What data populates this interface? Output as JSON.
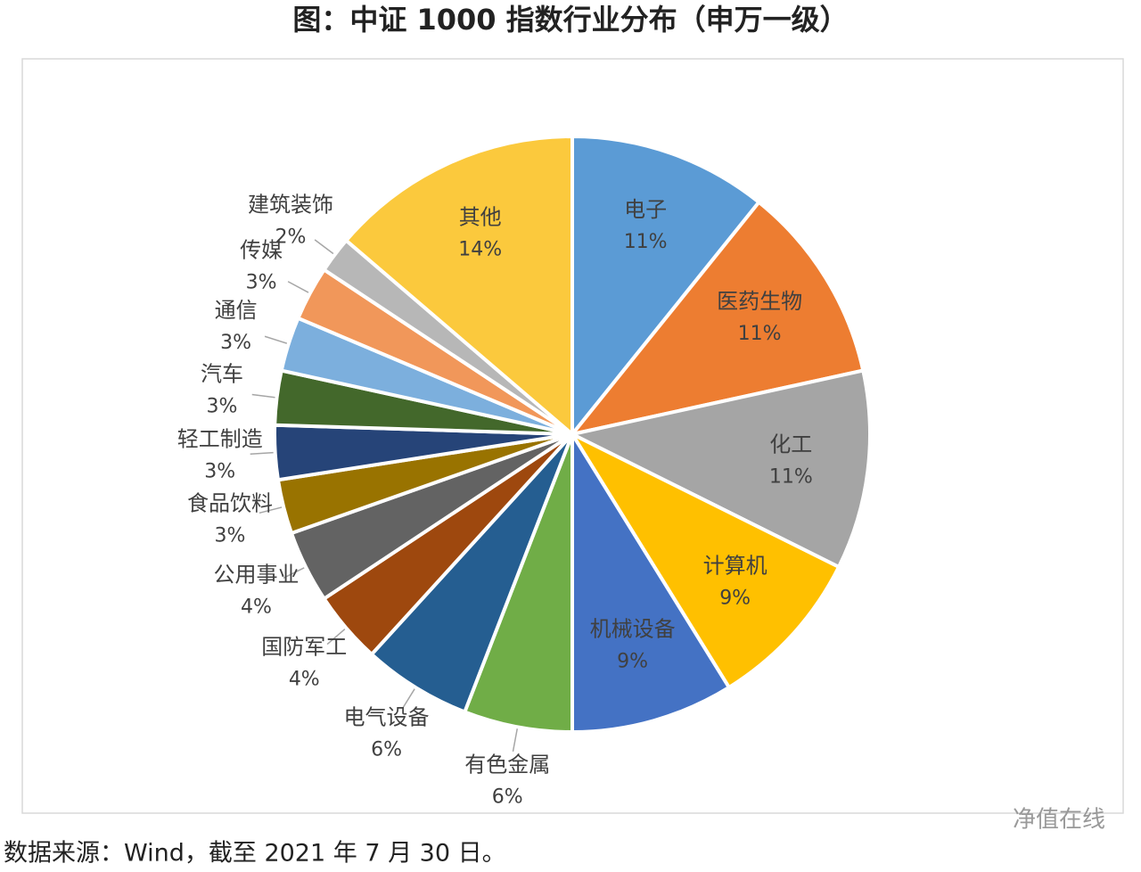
{
  "chart_data": {
    "type": "pie",
    "title": "图：中证 1000 指数行业分布（申万一级）",
    "categories": [
      "电子",
      "医药生物",
      "化工",
      "计算机",
      "机械设备",
      "有色金属",
      "电气设备",
      "国防军工",
      "公用事业",
      "食品饮料",
      "轻工制造",
      "汽车",
      "通信",
      "传媒",
      "建筑装饰",
      "其他"
    ],
    "values": [
      11,
      11,
      11,
      9,
      9,
      6,
      6,
      4,
      4,
      3,
      3,
      3,
      3,
      3,
      2,
      14
    ],
    "value_labels": [
      "11%",
      "11%",
      "11%",
      "9%",
      "9%",
      "6%",
      "6%",
      "4%",
      "4%",
      "3%",
      "3%",
      "3%",
      "3%",
      "3%",
      "2%",
      "14%"
    ],
    "colors": [
      "#5b9bd5",
      "#ed7d31",
      "#a5a5a5",
      "#ffc000",
      "#4472c4",
      "#70ad47",
      "#255e91",
      "#9e480e",
      "#636363",
      "#997300",
      "#264478",
      "#43682b",
      "#7cafdd",
      "#f1975a",
      "#b7b7b7",
      "#fbc93d"
    ],
    "source": "数据来源：Wind，截至 2021 年 7 月 30 日。",
    "watermark": "净值在线"
  }
}
